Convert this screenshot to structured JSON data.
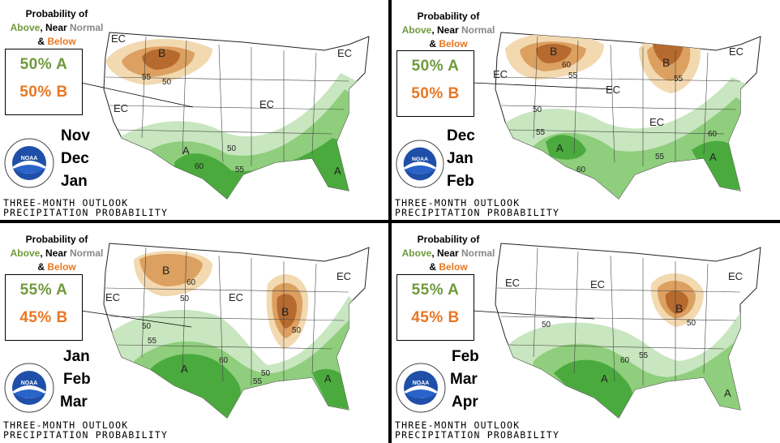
{
  "legend": {
    "line1": "Probability of",
    "above": "Above",
    "comma": ", ",
    "near": "Near",
    "normal": " Normal",
    "amp": "& ",
    "below": "Below"
  },
  "footer": {
    "line1": "THREE-MONTH OUTLOOK",
    "line2": "PRECIPITATION PROBABILITY"
  },
  "logo": {
    "text": "NOAA"
  },
  "colors": {
    "above_light": "#c8e6bf",
    "above_mid": "#8fce7c",
    "above_dark": "#4aaa3e",
    "below_light": "#f2d9b0",
    "below_mid": "#dca060",
    "below_dark": "#b66a2e"
  },
  "panels": [
    {
      "prob_a": "50% A",
      "prob_b": "50% B",
      "months": [
        "Nov",
        "Dec",
        "Jan"
      ]
    },
    {
      "prob_a": "50% A",
      "prob_b": "50% B",
      "months": [
        "Dec",
        "Jan",
        "Feb"
      ]
    },
    {
      "prob_a": "55% A",
      "prob_b": "45% B",
      "months": [
        "Jan",
        "Feb",
        "Mar"
      ]
    },
    {
      "prob_a": "55% A",
      "prob_b": "45% B",
      "months": [
        "Feb",
        "Mar",
        "Apr"
      ]
    }
  ]
}
